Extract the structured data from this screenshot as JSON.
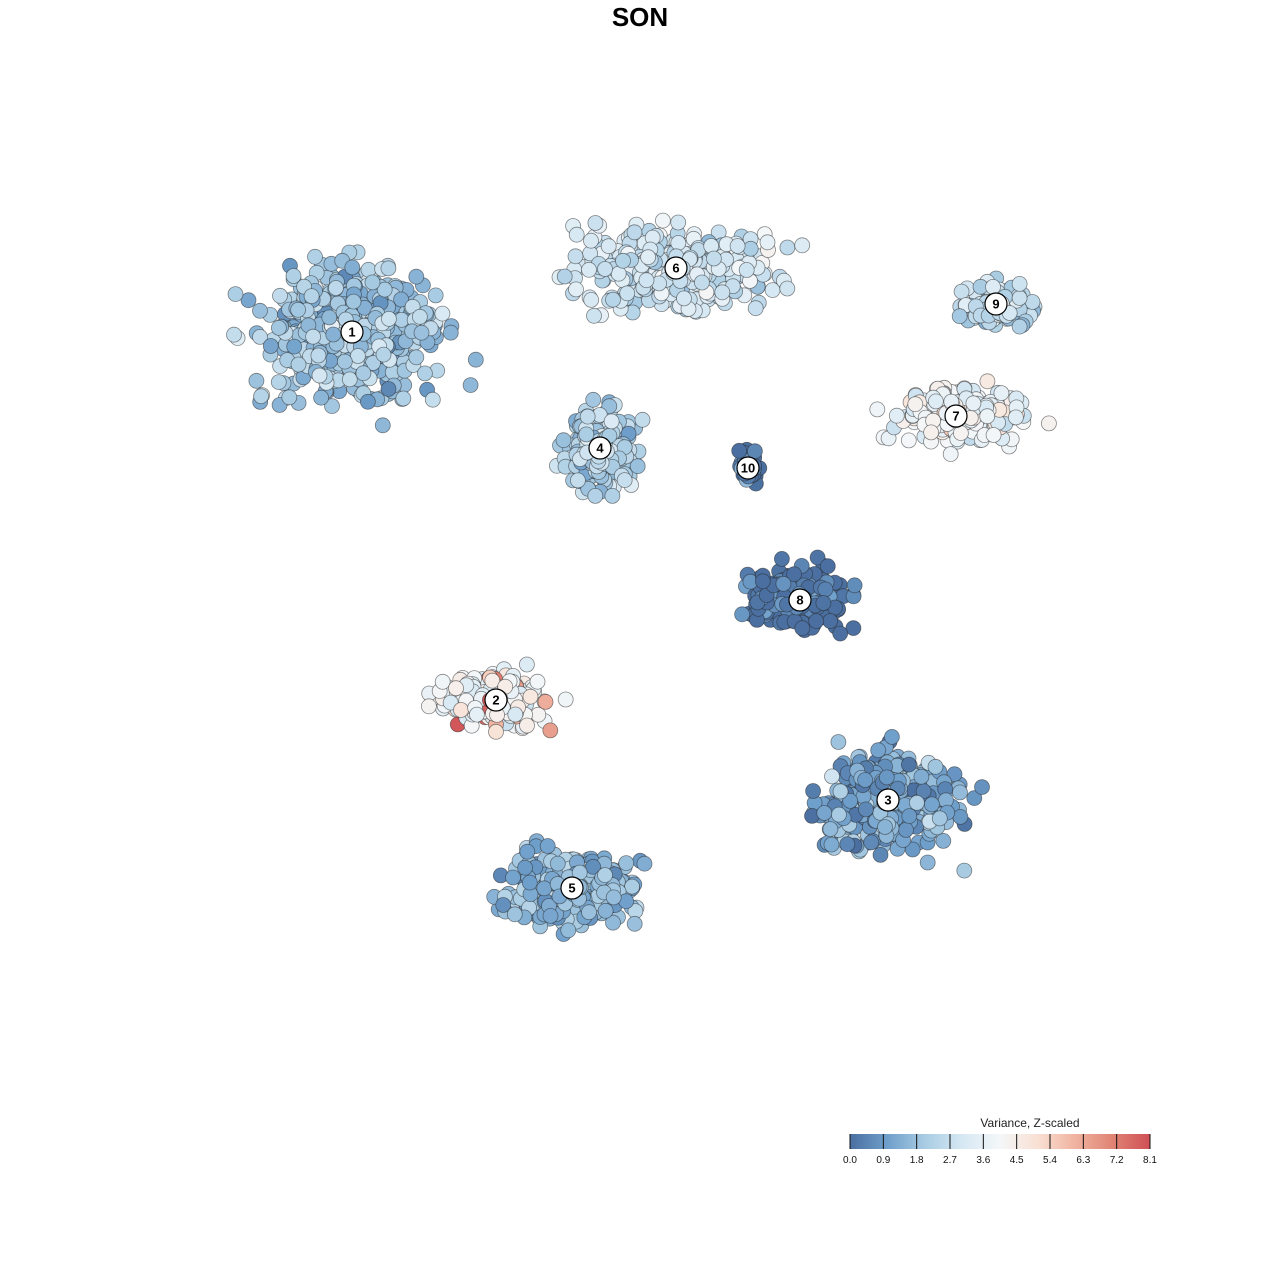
{
  "chart_data": {
    "type": "scatter",
    "title": "SON",
    "xlabel": "",
    "ylabel": "",
    "grid": false,
    "colormap": {
      "name": "RdBu_r",
      "stops": [
        "#4a6fa0",
        "#6f9fcb",
        "#a9cce3",
        "#d6e8f3",
        "#f4f7f9",
        "#f9e0d3",
        "#f0b3a0",
        "#e08474",
        "#cf4f55"
      ]
    },
    "legend": {
      "title": "Variance, Z-scaled",
      "placement": "bottom-right",
      "range": [
        0,
        8.1
      ],
      "ticks": [
        "0.0",
        "0.9",
        "1.8",
        "2.7",
        "3.6",
        "4.5",
        "5.4",
        "6.3",
        "7.2",
        "8.1"
      ]
    },
    "clusters": [
      {
        "id": "1",
        "x": -7.2,
        "y": 7.7,
        "mean_value": 1.9
      },
      {
        "id": "2",
        "x": -3.6,
        "y": -1.5,
        "mean_value": 3.9
      },
      {
        "id": "3",
        "x": 6.2,
        "y": -4.0,
        "mean_value": 1.2
      },
      {
        "id": "4",
        "x": -1.0,
        "y": 4.8,
        "mean_value": 2.3
      },
      {
        "id": "5",
        "x": -1.7,
        "y": -6.2,
        "mean_value": 1.6
      },
      {
        "id": "6",
        "x": 0.9,
        "y": 9.3,
        "mean_value": 2.9
      },
      {
        "id": "7",
        "x": 7.9,
        "y": 5.6,
        "mean_value": 4.0
      },
      {
        "id": "8",
        "x": 4.0,
        "y": 1.0,
        "mean_value": 0.1
      },
      {
        "id": "9",
        "x": 8.9,
        "y": 8.4,
        "mean_value": 2.6
      },
      {
        "id": "10",
        "x": 2.7,
        "y": 4.3,
        "mean_value": 0.2
      }
    ]
  }
}
